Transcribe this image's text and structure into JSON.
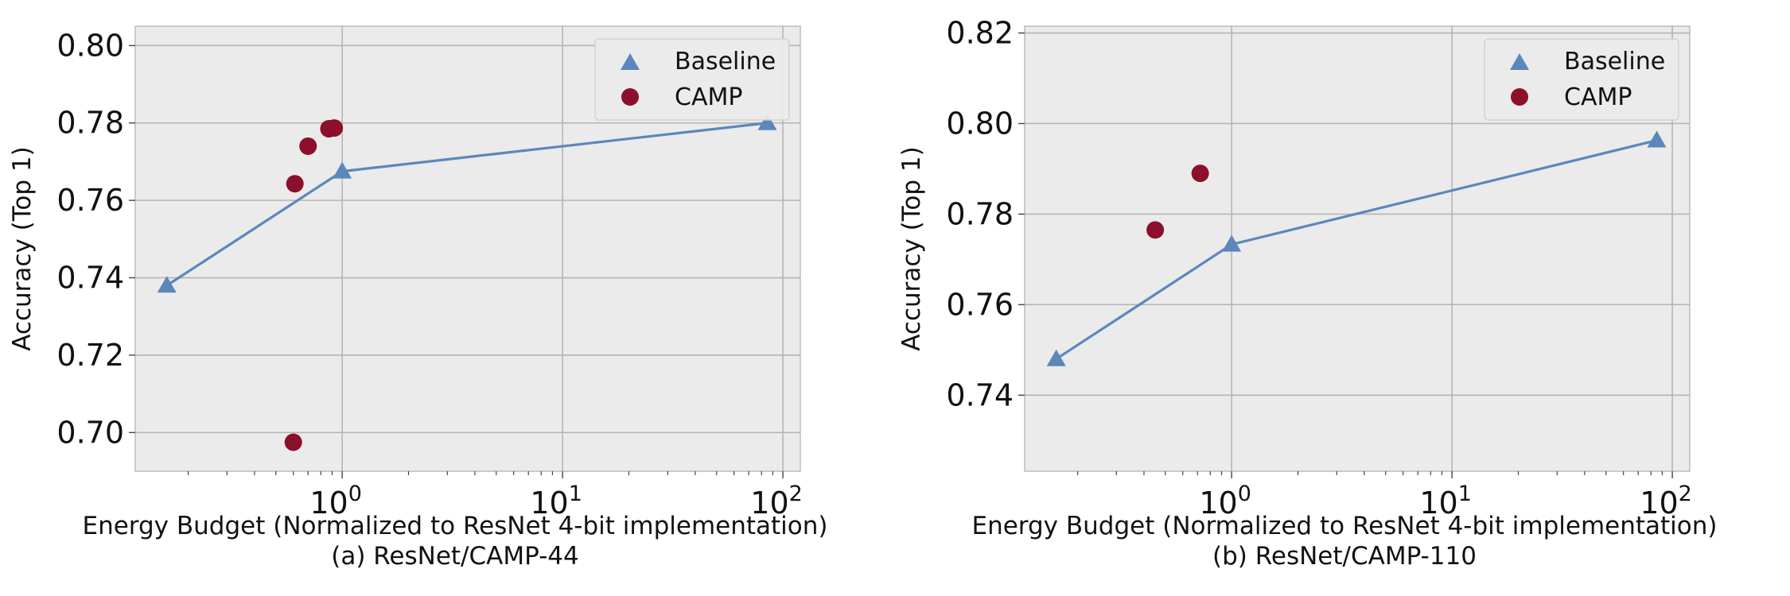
{
  "colors": {
    "baseline": "#5b87bb",
    "camp": "#8c0f2c",
    "panel_bg": "#ebebeb",
    "grid": "#b5b5b5"
  },
  "chart_data": [
    {
      "type": "scatter",
      "xscale": "log",
      "xlim": [
        0.115,
        120
      ],
      "ylim": [
        0.69,
        0.805
      ],
      "grid": true,
      "legend_position": "top-right",
      "xlabel": "Energy Budget (Normalized to ResNet 4-bit implementation)",
      "ylabel": "Accuracy (Top 1)",
      "caption": "(a) ResNet/CAMP-44",
      "xticks": [
        {
          "value": 1,
          "base": "10",
          "exp": "0"
        },
        {
          "value": 10,
          "base": "10",
          "exp": "1"
        },
        {
          "value": 100,
          "base": "10",
          "exp": "2"
        }
      ],
      "yticks": [
        {
          "value": 0.7,
          "label": "0.70"
        },
        {
          "value": 0.72,
          "label": "0.72"
        },
        {
          "value": 0.74,
          "label": "0.74"
        },
        {
          "value": 0.76,
          "label": "0.76"
        },
        {
          "value": 0.78,
          "label": "0.78"
        },
        {
          "value": 0.8,
          "label": "0.80"
        }
      ],
      "series": [
        {
          "name": "Baseline",
          "marker": "triangle",
          "line": true,
          "points": [
            [
              0.16,
              0.738
            ],
            [
              1.0,
              0.7675
            ],
            [
              85,
              0.78
            ]
          ]
        },
        {
          "name": "CAMP",
          "marker": "circle",
          "line": false,
          "points": [
            [
              0.6,
              0.6975
            ],
            [
              0.61,
              0.7643
            ],
            [
              0.7,
              0.774
            ],
            [
              0.87,
              0.7785
            ],
            [
              0.92,
              0.7787
            ]
          ]
        }
      ]
    },
    {
      "type": "scatter",
      "xscale": "log",
      "xlim": [
        0.115,
        120
      ],
      "ylim": [
        0.7232,
        0.8215
      ],
      "grid": true,
      "legend_position": "top-right",
      "xlabel": "Energy Budget (Normalized to ResNet 4-bit implementation)",
      "ylabel": "Accuracy (Top 1)",
      "caption": "(b) ResNet/CAMP-110",
      "xticks": [
        {
          "value": 1,
          "base": "10",
          "exp": "0"
        },
        {
          "value": 10,
          "base": "10",
          "exp": "1"
        },
        {
          "value": 100,
          "base": "10",
          "exp": "2"
        }
      ],
      "yticks": [
        {
          "value": 0.74,
          "label": "0.74"
        },
        {
          "value": 0.76,
          "label": "0.76"
        },
        {
          "value": 0.78,
          "label": "0.78"
        },
        {
          "value": 0.8,
          "label": "0.80"
        },
        {
          "value": 0.82,
          "label": "0.82"
        }
      ],
      "series": [
        {
          "name": "Baseline",
          "marker": "triangle",
          "line": true,
          "points": [
            [
              0.16,
              0.748
            ],
            [
              1.0,
              0.7733
            ],
            [
              85,
              0.7963
            ]
          ]
        },
        {
          "name": "CAMP",
          "marker": "circle",
          "line": false,
          "points": [
            [
              0.45,
              0.7765
            ],
            [
              0.72,
              0.789
            ]
          ]
        }
      ]
    }
  ]
}
